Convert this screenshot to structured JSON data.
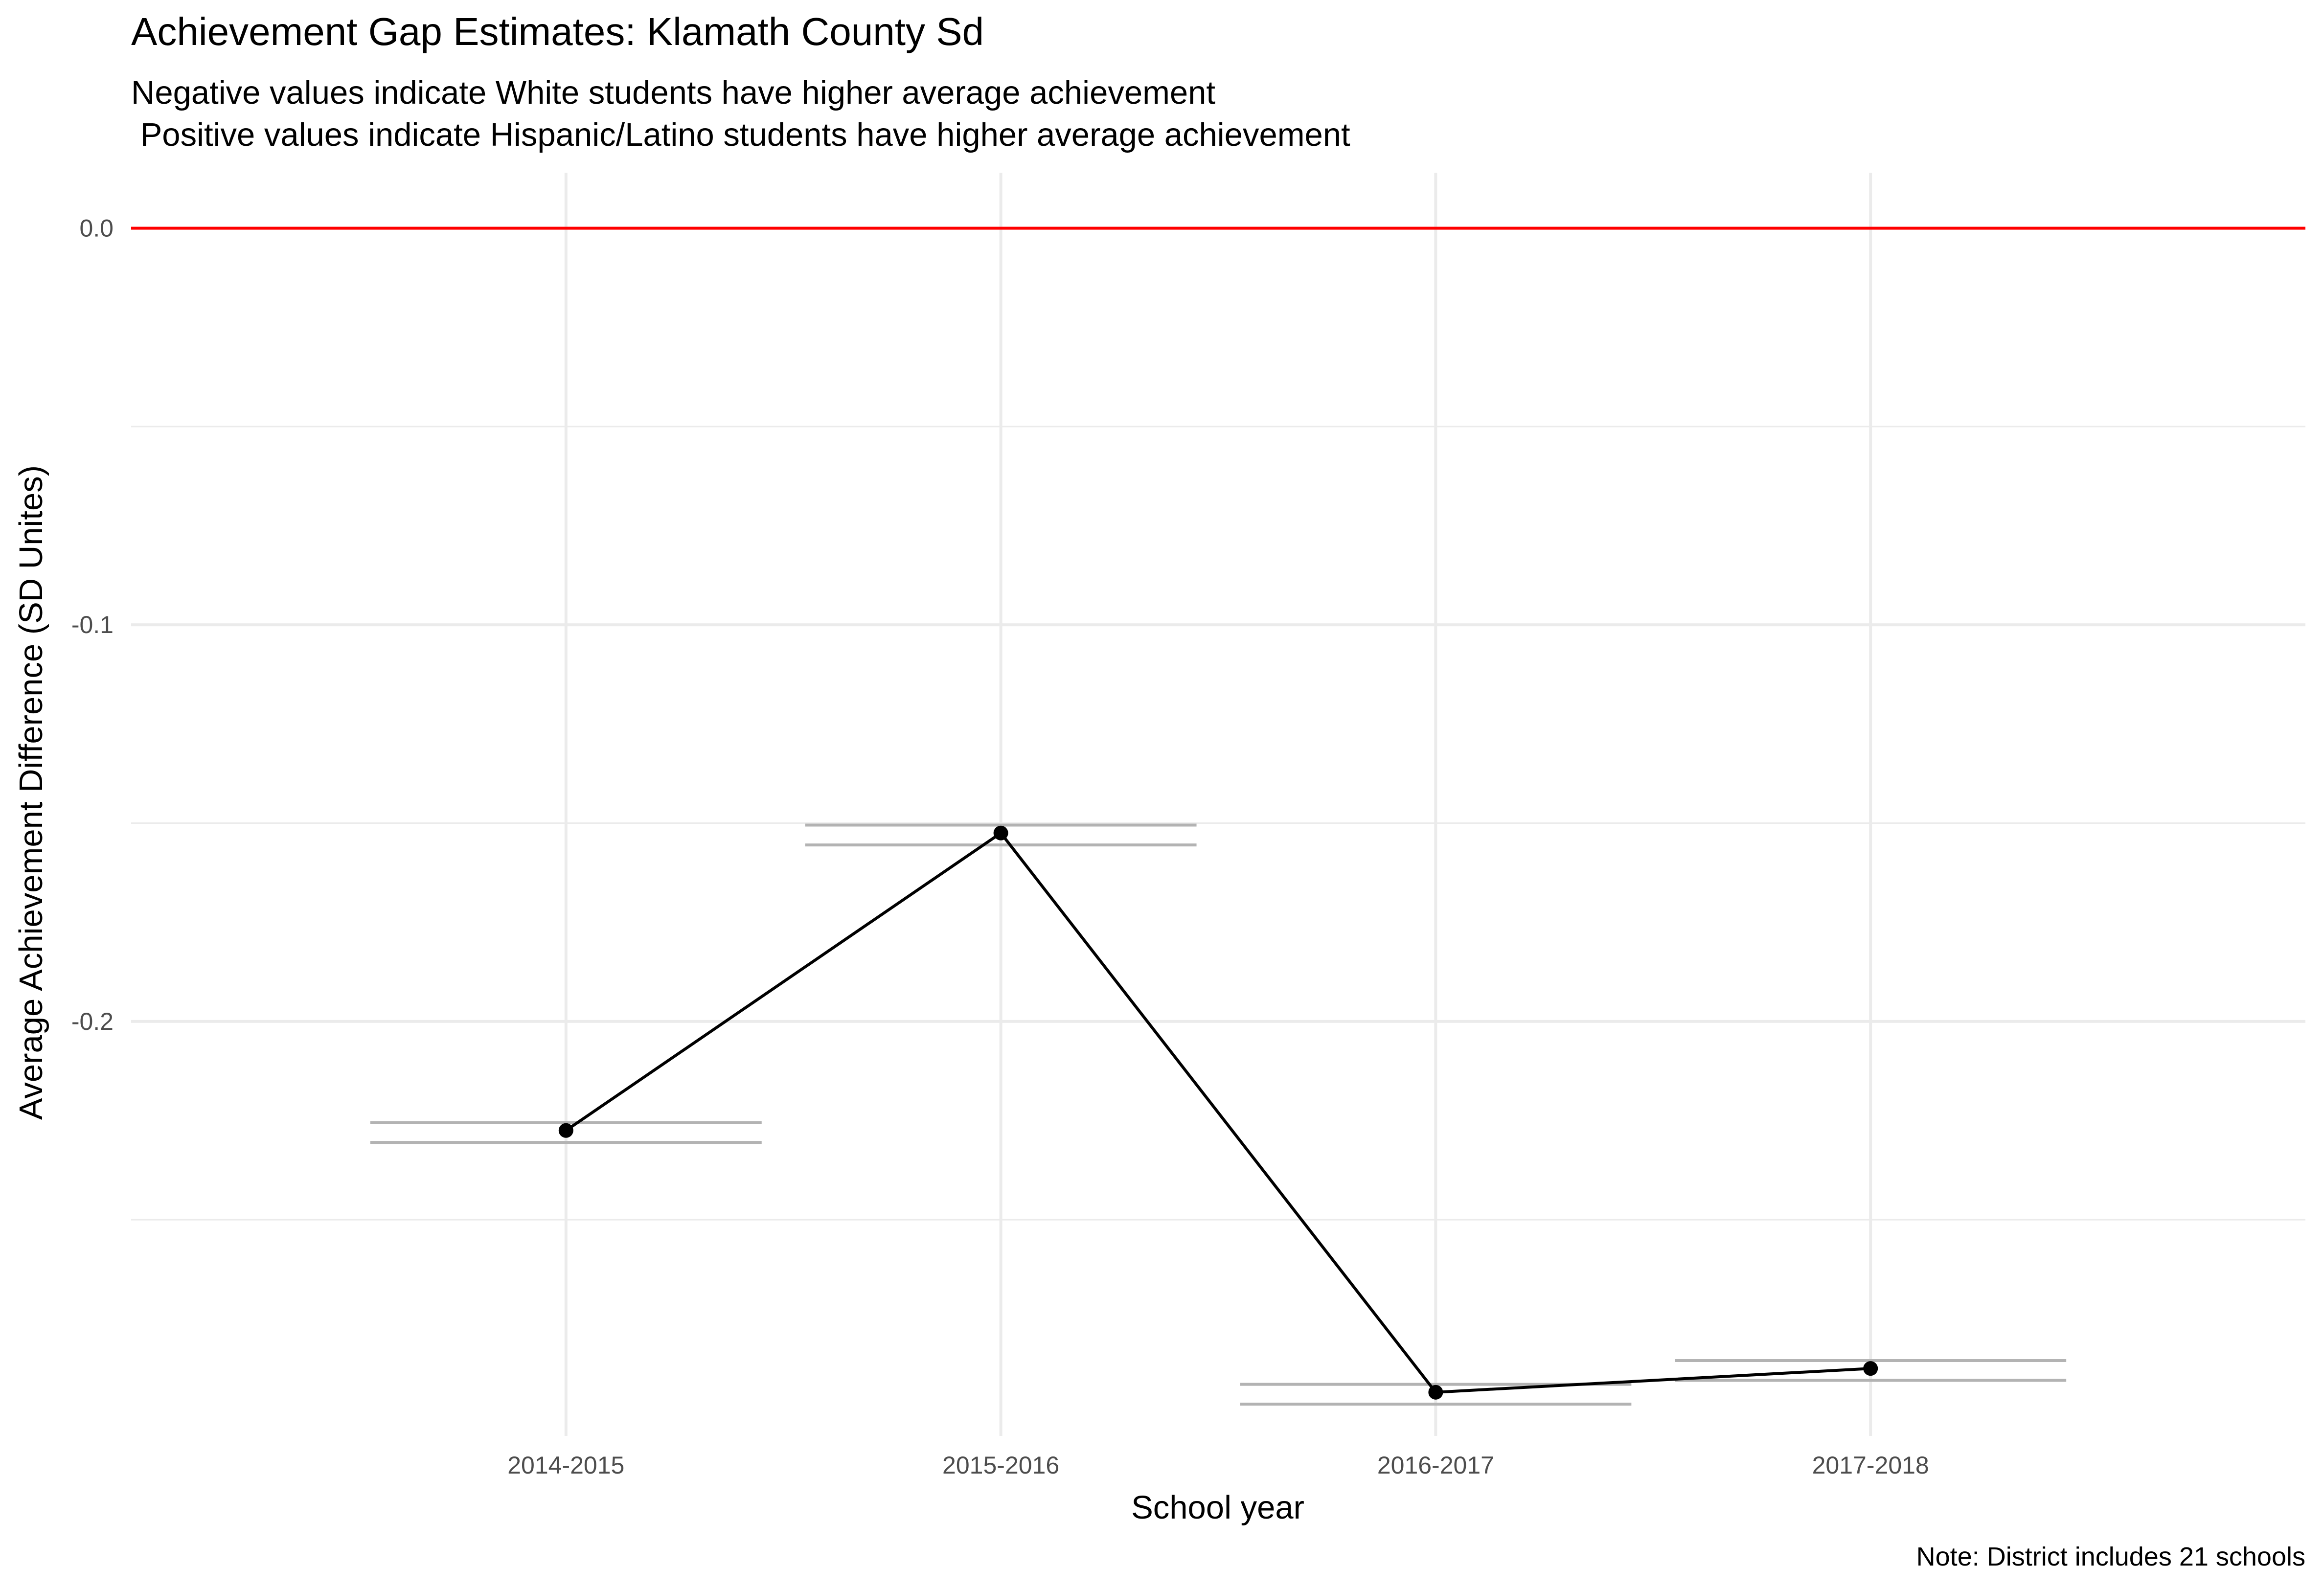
{
  "chart_data": {
    "type": "line",
    "title": "Achievement Gap Estimates: Klamath County Sd",
    "subtitle_lines": [
      "Negative values indicate White students have higher average achievement",
      " Positive values indicate Hispanic/Latino students have higher average achievement"
    ],
    "xlabel": "School year",
    "ylabel": "Average Achievement Difference (SD Unites)",
    "caption": "Note: District includes 21 schools",
    "categories": [
      "2014-2015",
      "2015-2016",
      "2016-2017",
      "2017-2018"
    ],
    "series": [
      {
        "values": [
          -0.2275,
          -0.1525,
          -0.2935,
          -0.2875
        ],
        "error_low": [
          -0.2305,
          -0.1555,
          -0.2965,
          -0.2905
        ],
        "error_high": [
          -0.2255,
          -0.1505,
          -0.2915,
          -0.2855
        ],
        "color": "#000000"
      }
    ],
    "reference_line": {
      "y": 0.0,
      "color": "#ff0000"
    },
    "ylim": [
      -0.3045,
      0.014
    ],
    "yticks": [
      0.0,
      -0.1,
      -0.2
    ],
    "ytick_labels": [
      "0.0",
      "-0.1",
      "-0.2"
    ],
    "grid": true,
    "error_bar_color": "#b3b3b3",
    "grid_color": "#ebebeb"
  }
}
